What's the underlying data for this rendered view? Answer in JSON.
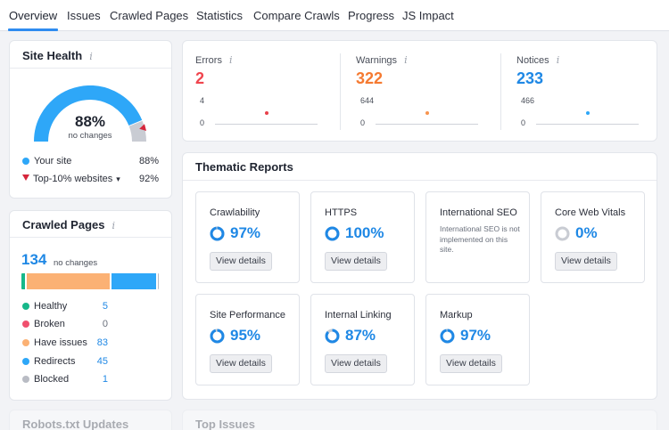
{
  "tabs": [
    "Overview",
    "Issues",
    "Crawled Pages",
    "Statistics",
    "Compare Crawls",
    "Progress",
    "JS Impact"
  ],
  "site_health": {
    "title": "Site Health",
    "info_icon": "i",
    "value": "88%",
    "sub": "no changes",
    "rows": [
      {
        "label": "Your site",
        "value": "88%",
        "color": "#2ea7f8"
      },
      {
        "label": "Top-10% websites",
        "value": "92%",
        "color": "#d6263b"
      }
    ],
    "gauge_fraction": 0.88,
    "top10_fraction": 0.92
  },
  "crawled_pages": {
    "title": "Crawled Pages",
    "info_icon": "i",
    "total": "134",
    "note": "no changes",
    "rows": [
      {
        "label": "Healthy",
        "value": "5",
        "color": "#16b88a",
        "value_color": "#1f88e5"
      },
      {
        "label": "Broken",
        "value": "0",
        "color": "#f0506e",
        "value_color": "#6a707c"
      },
      {
        "label": "Have issues",
        "value": "83",
        "color": "#fbb174",
        "value_color": "#1f88e5"
      },
      {
        "label": "Redirects",
        "value": "45",
        "color": "#2ea7f8",
        "value_color": "#1f88e5"
      },
      {
        "label": "Blocked",
        "value": "1",
        "color": "#b9bcc4",
        "value_color": "#1f88e5"
      }
    ]
  },
  "metrics": [
    {
      "label": "Errors",
      "value": "2",
      "color": "#f0454e",
      "axis_top": "4",
      "axis_bottom": "0",
      "dot_color": "#e8404a",
      "dot_fraction": 0.5
    },
    {
      "label": "Warnings",
      "value": "322",
      "color": "#f57a31",
      "axis_top": "644",
      "axis_bottom": "0",
      "dot_color": "#f7944f",
      "dot_fraction": 0.5
    },
    {
      "label": "Notices",
      "value": "233",
      "color": "#1f88e5",
      "axis_top": "466",
      "axis_bottom": "0",
      "dot_color": "#2ea7f8",
      "dot_fraction": 0.5
    }
  ],
  "metrics_info_icon": "i",
  "thematic": {
    "title": "Thematic Reports",
    "view_label": "View details",
    "reports": [
      {
        "name": "Crawlability",
        "pct": "97%",
        "fraction": 0.97
      },
      {
        "name": "HTTPS",
        "pct": "100%",
        "fraction": 1.0
      },
      {
        "name": "International SEO",
        "note": "International SEO is not implemented on this site."
      },
      {
        "name": "Core Web Vitals",
        "pct": "0%",
        "fraction": 0.0
      },
      {
        "name": "Site Performance",
        "pct": "95%",
        "fraction": 0.95
      },
      {
        "name": "Internal Linking",
        "pct": "87%",
        "fraction": 0.87
      },
      {
        "name": "Markup",
        "pct": "97%",
        "fraction": 0.97
      }
    ]
  },
  "bottom": {
    "robots_title": "Robots.txt Updates",
    "top_issues_title": "Top Issues"
  },
  "colors": {
    "accent": "#2f8cf0",
    "gauge_blue": "#2ea7f8",
    "gauge_gray": "#c9ccd3",
    "ring_track": "#c9ccd3"
  }
}
